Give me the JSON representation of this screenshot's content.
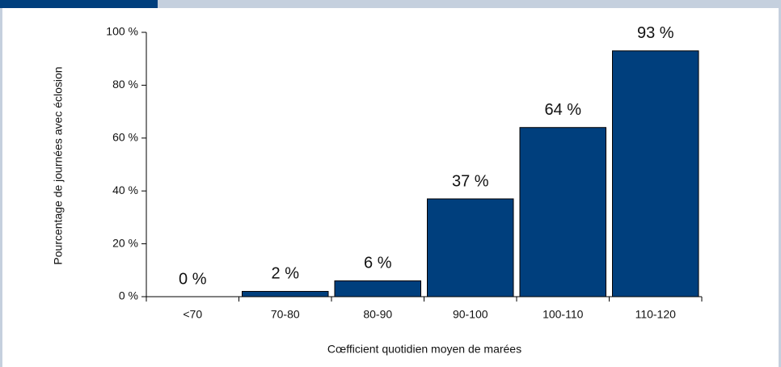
{
  "chart_data": {
    "type": "bar",
    "xlabel": "Cœfficient quotidien moyen de marées",
    "ylabel": "Pourcentage de journées avec éclosion",
    "categories": [
      "<70",
      "70-80",
      "80-90",
      "90-100",
      "100-110",
      "110-120"
    ],
    "values": [
      0,
      2,
      6,
      37,
      64,
      93
    ],
    "value_labels": [
      "0 %",
      "2 %",
      "6 %",
      "37 %",
      "64 %",
      "93 %"
    ],
    "color": "#003f7d",
    "ylim": [
      0,
      100
    ],
    "yticks": [
      {
        "value": 0,
        "label": "0 %"
      },
      {
        "value": 20,
        "label": "20 %"
      },
      {
        "value": 40,
        "label": "40 %"
      },
      {
        "value": 60,
        "label": "60 %"
      },
      {
        "value": 80,
        "label": "80 %"
      },
      {
        "value": 100,
        "label": "100 %"
      }
    ],
    "grid": false
  }
}
